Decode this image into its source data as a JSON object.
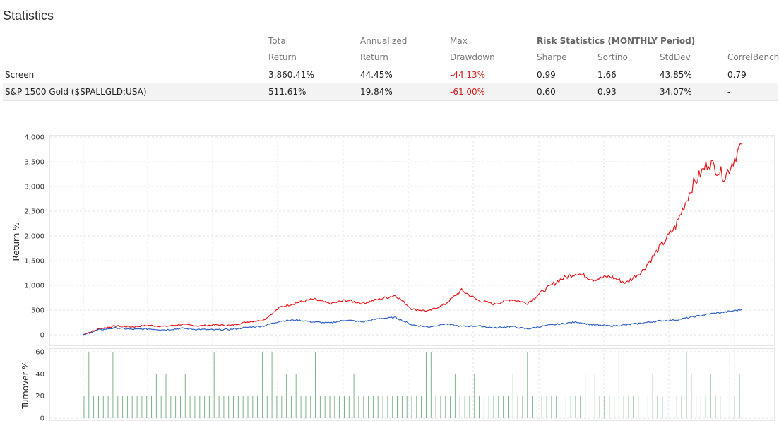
{
  "page": {
    "title": "Statistics"
  },
  "table": {
    "headers": {
      "total_1": "Total",
      "total_2": "Return",
      "ann_1": "Annualized",
      "ann_2": "Return",
      "max_1": "Max",
      "max_2": "Drawdown",
      "risk_group": "Risk Statistics (MONTHLY Period)",
      "sharpe": "Sharpe",
      "sortino": "Sortino",
      "stddev": "StdDev",
      "correl": "CorrelBench"
    },
    "rows": [
      {
        "name": "Screen",
        "total": "3,860.41%",
        "annualized": "44.45%",
        "drawdown": "-44.13%",
        "sharpe": "0.99",
        "sortino": "1.66",
        "stddev": "43.85%",
        "correl": "0.79"
      },
      {
        "name": "S&P 1500 Gold ($SPALLGLD:USA)",
        "total": "511.61%",
        "annualized": "19.84%",
        "drawdown": "-61.00%",
        "sharpe": "0.60",
        "sortino": "0.93",
        "stddev": "34.07%",
        "correl": "-"
      }
    ]
  },
  "colors": {
    "screen": "#e8161b",
    "benchmark": "#2f5fc4",
    "turnover": "#7fb28a",
    "negative": "#cc1f1f"
  },
  "chart_data": [
    {
      "type": "line",
      "ylabel": "Return %",
      "ylim": [
        0,
        4000
      ],
      "yticks": [
        "0",
        "500",
        "1,000",
        "1,500",
        "2,000",
        "2,500",
        "3,000",
        "3,500",
        "4,000"
      ],
      "grid": true,
      "x_periods": 41,
      "series": [
        {
          "color": "#e8161b",
          "values": [
            0,
            120,
            180,
            160,
            190,
            170,
            210,
            180,
            200,
            190,
            260,
            300,
            560,
            650,
            720,
            630,
            700,
            640,
            720,
            800,
            520,
            480,
            620,
            900,
            700,
            620,
            720,
            640,
            900,
            1120,
            1250,
            1120,
            1180,
            1050,
            1300,
            1750,
            2200,
            3000,
            3500,
            3200,
            3860
          ]
        },
        {
          "color": "#2f5fc4",
          "values": [
            0,
            100,
            140,
            110,
            120,
            100,
            130,
            110,
            100,
            110,
            150,
            180,
            280,
            300,
            260,
            240,
            300,
            260,
            330,
            350,
            200,
            160,
            220,
            170,
            180,
            140,
            170,
            120,
            180,
            220,
            260,
            200,
            180,
            200,
            240,
            280,
            300,
            360,
            420,
            460,
            512
          ]
        }
      ]
    },
    {
      "type": "bar",
      "ylabel": "Turnover %",
      "ylim": [
        0,
        60
      ],
      "yticks": [
        "0",
        "20",
        "40",
        "60"
      ],
      "grid": true,
      "values": [
        20,
        60,
        20,
        20,
        20,
        20,
        60,
        20,
        20,
        20,
        20,
        20,
        20,
        20,
        20,
        40,
        20,
        40,
        20,
        20,
        20,
        40,
        20,
        20,
        20,
        20,
        20,
        60,
        20,
        20,
        20,
        20,
        20,
        20,
        20,
        20,
        20,
        60,
        20,
        60,
        20,
        20,
        40,
        20,
        40,
        20,
        20,
        20,
        60,
        20,
        20,
        20,
        20,
        20,
        20,
        20,
        40,
        20,
        20,
        20,
        20,
        20,
        20,
        20,
        20,
        20,
        20,
        20,
        20,
        20,
        20,
        60,
        60,
        20,
        20,
        20,
        20,
        40,
        20,
        20,
        20,
        40,
        20,
        20,
        20,
        20,
        20,
        20,
        20,
        40,
        20,
        20,
        60,
        20,
        20,
        20,
        20,
        20,
        20,
        60,
        20,
        20,
        20,
        20,
        40,
        20,
        40,
        20,
        20,
        20,
        20,
        60,
        20,
        20,
        20,
        20,
        20,
        20,
        40,
        20,
        20,
        20,
        20,
        20,
        20,
        60,
        40,
        20,
        20,
        20,
        40,
        20,
        20,
        20,
        60,
        20,
        40
      ]
    }
  ]
}
